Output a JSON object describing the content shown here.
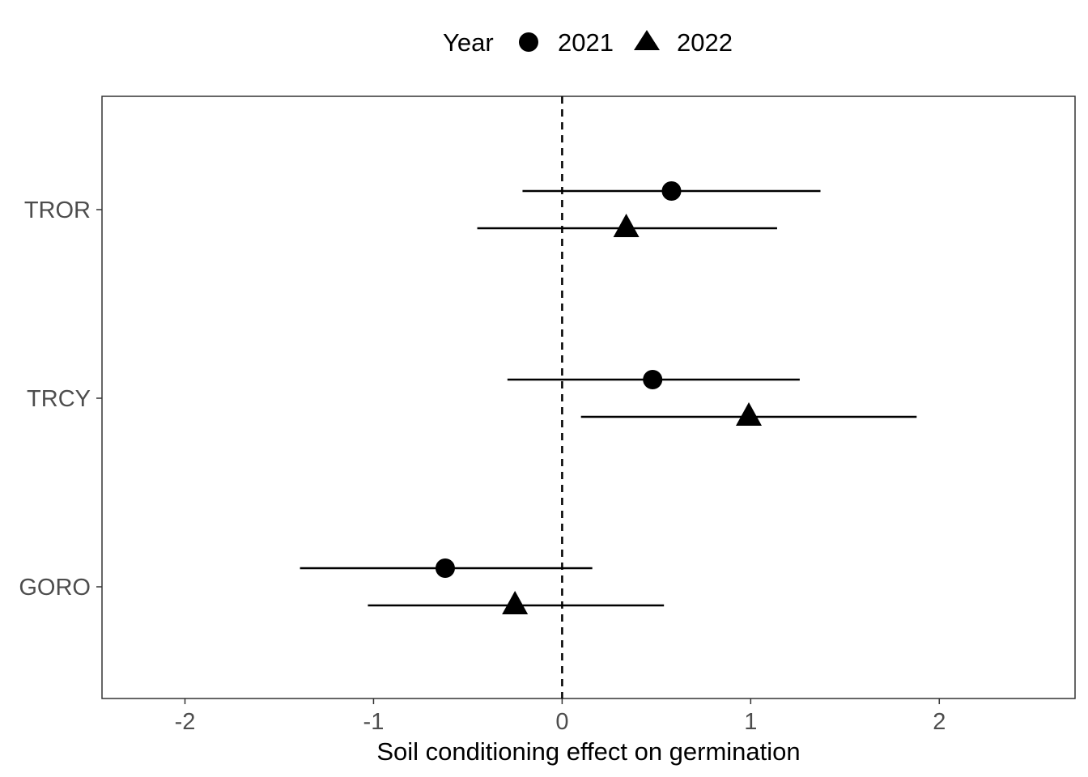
{
  "chart_data": {
    "type": "scatter",
    "title": "",
    "xlabel": "Soil conditioning effect on germination",
    "ylabel": "",
    "xlim": [
      -2.44,
      2.72
    ],
    "xticks": [
      -2,
      -1,
      0,
      1,
      2
    ],
    "categories": [
      "TROR",
      "TRCY",
      "GORO"
    ],
    "reference_line": {
      "x": 0,
      "style": "dashed"
    },
    "grid": false,
    "legend": {
      "title": "Year",
      "placement": "top",
      "entries": [
        {
          "label": "2021",
          "shape": "circle"
        },
        {
          "label": "2022",
          "shape": "triangle"
        }
      ]
    },
    "series": [
      {
        "name": "2021",
        "shape": "circle",
        "points": [
          {
            "category": "TROR",
            "estimate": 0.58,
            "lower": -0.21,
            "upper": 1.37
          },
          {
            "category": "TRCY",
            "estimate": 0.48,
            "lower": -0.29,
            "upper": 1.26
          },
          {
            "category": "GORO",
            "estimate": -0.62,
            "lower": -1.39,
            "upper": 0.16
          }
        ]
      },
      {
        "name": "2022",
        "shape": "triangle",
        "points": [
          {
            "category": "TROR",
            "estimate": 0.34,
            "lower": -0.45,
            "upper": 1.14
          },
          {
            "category": "TRCY",
            "estimate": 0.99,
            "lower": 0.1,
            "upper": 1.88
          },
          {
            "category": "GORO",
            "estimate": -0.25,
            "lower": -1.03,
            "upper": 0.54
          }
        ]
      }
    ],
    "colors": {
      "points": "#000000",
      "panel_border": "#333333",
      "ticks": "#333333"
    }
  }
}
